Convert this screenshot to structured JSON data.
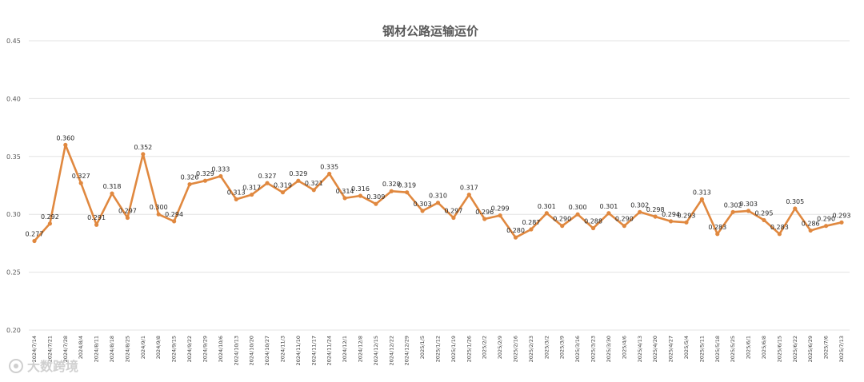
{
  "chart_data": {
    "type": "line",
    "title": "钢材公路运输运价",
    "ylim": [
      0.2,
      0.45
    ],
    "yticks": [
      "0.20",
      "0.25",
      "0.30",
      "0.35",
      "0.40",
      "0.45"
    ],
    "grid": true,
    "legend": "none",
    "color": "#E0883F",
    "x": [
      "2024/7/14",
      "2024/7/21",
      "2024/7/28",
      "2024/8/4",
      "2024/8/11",
      "2024/8/18",
      "2024/8/25",
      "2024/9/1",
      "2024/9/8",
      "2024/9/15",
      "2024/9/22",
      "2024/9/29",
      "2024/10/6",
      "2024/10/13",
      "2024/10/20",
      "2024/10/27",
      "2024/11/3",
      "2024/11/10",
      "2024/11/17",
      "2024/11/24",
      "2024/12/1",
      "2024/12/8",
      "2024/12/15",
      "2024/12/22",
      "2024/12/29",
      "2025/1/5",
      "2025/1/12",
      "2025/1/19",
      "2025/1/26",
      "2025/2/2",
      "2025/2/9",
      "2025/2/16",
      "2025/2/23",
      "2025/3/2",
      "2025/3/9",
      "2025/3/16",
      "2025/3/23",
      "2025/3/30",
      "2025/4/6",
      "2025/4/13",
      "2025/4/20",
      "2025/4/27",
      "2025/5/4",
      "2025/5/11",
      "2025/5/18",
      "2025/5/25",
      "2025/6/1",
      "2025/6/8",
      "2025/6/15",
      "2025/6/22",
      "2025/6/29",
      "2025/7/6",
      "2025/7/13"
    ],
    "values": [
      0.277,
      0.292,
      0.36,
      0.327,
      0.291,
      0.318,
      0.297,
      0.352,
      0.3,
      0.294,
      0.326,
      0.329,
      0.333,
      0.313,
      0.317,
      0.327,
      0.319,
      0.329,
      0.321,
      0.335,
      0.314,
      0.316,
      0.309,
      0.32,
      0.319,
      0.303,
      0.31,
      0.297,
      0.317,
      0.296,
      0.299,
      0.28,
      0.287,
      0.301,
      0.29,
      0.3,
      0.288,
      0.301,
      0.29,
      0.302,
      0.298,
      0.294,
      0.293,
      0.313,
      0.283,
      0.302,
      0.303,
      0.295,
      0.283,
      0.305,
      0.286,
      0.29,
      0.293
    ],
    "data_labels": [
      "0.277",
      "0.292",
      "0.360",
      "0.327",
      "0.291",
      "0.318",
      "0.297",
      "0.352",
      "0.300",
      "0.294",
      "0.326",
      "0.329",
      "0.333",
      "0.313",
      "0.317",
      "0.327",
      "0.319",
      "0.329",
      "0.321",
      "0.335",
      "0.314",
      "0.316",
      "0.309",
      "0.320",
      "0.319",
      "0.303",
      "0.310",
      "0.297",
      "0.317",
      "0.296",
      "0.299",
      "0.280",
      "0.287",
      "0.301",
      "0.290",
      "0.300",
      "0.288",
      "0.301",
      "0.290",
      "0.302",
      "0.298",
      "0.294",
      "0.293",
      "0.313",
      "0.283",
      "0.302",
      "0.303",
      "0.295",
      "0.283",
      "0.305",
      "0.286",
      "0.290",
      "0.293"
    ]
  },
  "watermark": {
    "text": "大数跨境",
    "icon": "logo-icon"
  }
}
